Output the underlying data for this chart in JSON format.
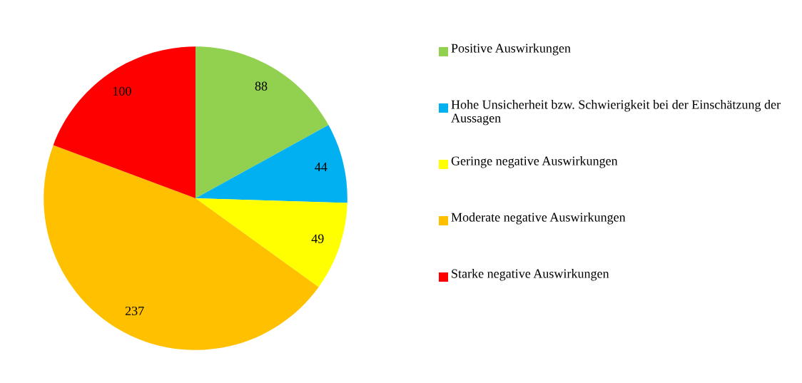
{
  "chart_data": {
    "type": "pie",
    "categories": [
      "Positive Auswirkungen",
      "Hohe Unsicherheit bzw. Schwierigkeit bei der Einschätzung der Aussagen",
      "Geringe negative Auswirkungen",
      "Moderate negative Auswirkungen",
      "Starke negative Auswirkungen"
    ],
    "values": [
      88,
      44,
      49,
      237,
      100
    ],
    "colors": [
      "#92d050",
      "#00b0f0",
      "#ffff00",
      "#ffc000",
      "#ff0000"
    ],
    "data_labels": true,
    "legend": "right"
  }
}
